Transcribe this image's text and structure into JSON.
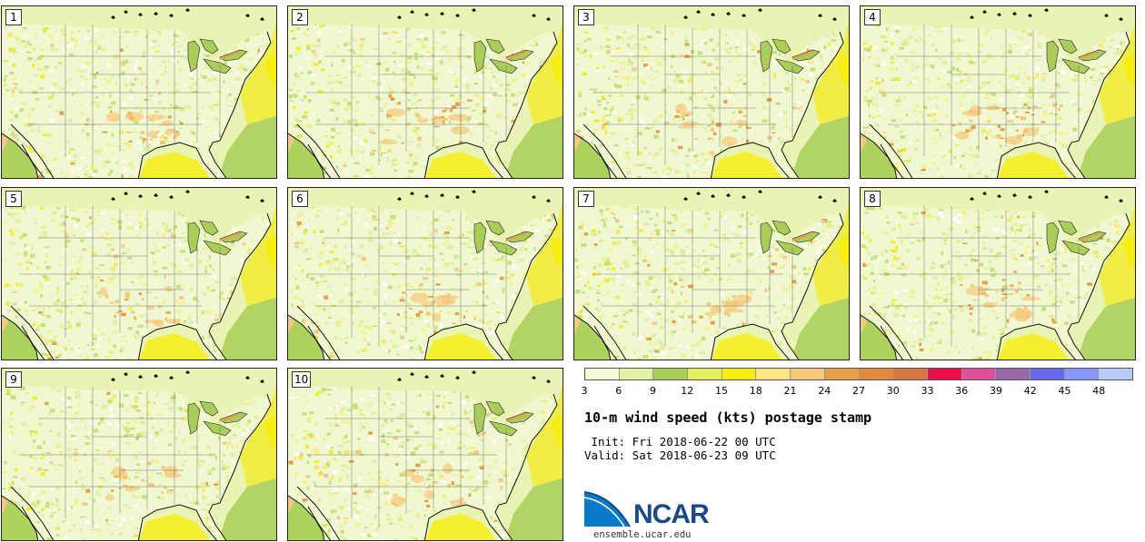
{
  "panels": [
    {
      "label": "1"
    },
    {
      "label": "2"
    },
    {
      "label": "3"
    },
    {
      "label": "4"
    },
    {
      "label": "5"
    },
    {
      "label": "6"
    },
    {
      "label": "7"
    },
    {
      "label": "8"
    },
    {
      "label": "9"
    },
    {
      "label": "10"
    }
  ],
  "colorbar": {
    "colors": [
      "#f4fad8",
      "#e0f2a6",
      "#aacd5a",
      "#e4f060",
      "#f7ee10",
      "#fbe681",
      "#f6c87a",
      "#e8a048",
      "#e08a3c",
      "#d67844",
      "#e8104a",
      "#e0509a",
      "#9868a8",
      "#6868ec",
      "#8898f8",
      "#b8ccfc"
    ],
    "tick_labels": [
      "3",
      "6",
      "9",
      "12",
      "15",
      "18",
      "21",
      "24",
      "27",
      "30",
      "33",
      "36",
      "39",
      "42",
      "45",
      "48"
    ]
  },
  "title": "10-m wind speed (kts) postage stamp",
  "init": " Init: Fri 2018-06-22 00 UTC",
  "valid": "Valid: Sat 2018-06-23 09 UTC",
  "logo": {
    "text": "NCAR",
    "site": "ensemble.ucar.edu",
    "brand_color": "#1a4a86",
    "swoosh_color": "#0a7ac8"
  }
}
